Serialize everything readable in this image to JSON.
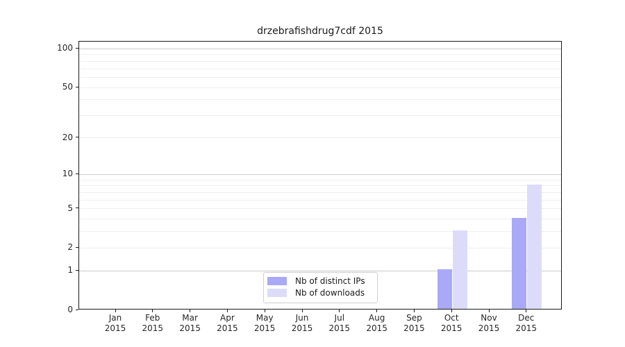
{
  "figure": {
    "background": "#ffffff"
  },
  "chart_data": {
    "type": "bar",
    "title": "drzebrafishdrug7cdf 2015",
    "categories": [
      "Jan",
      "Feb",
      "Mar",
      "Apr",
      "May",
      "Jun",
      "Jul",
      "Aug",
      "Sep",
      "Oct",
      "Nov",
      "Dec"
    ],
    "x_year_label": "2015",
    "series": [
      {
        "name": "Nb of distinct IPs",
        "key": "distinct-ips",
        "color": "#a9a9f8",
        "values": [
          0,
          0,
          0,
          0,
          0,
          0,
          0,
          0,
          0,
          1,
          0,
          4
        ]
      },
      {
        "name": "Nb of downloads",
        "key": "downloads",
        "color": "#dcdcfa",
        "values": [
          0,
          0,
          0,
          0,
          0,
          0,
          0,
          0,
          0,
          3,
          0,
          8
        ]
      }
    ],
    "y_axis": {
      "scale": "log10(1+y)",
      "tick_values": [
        0,
        1,
        2,
        5,
        10,
        20,
        50,
        100
      ],
      "tick_labels": [
        "0",
        "1",
        "2",
        "5",
        "10",
        "20",
        "50",
        "100"
      ],
      "major_grid_values": [
        1,
        10,
        100
      ],
      "minor_grid_values": [
        2,
        3,
        4,
        5,
        6,
        7,
        8,
        9,
        20,
        30,
        40,
        50,
        60,
        70,
        80,
        90
      ],
      "ylim": [
        0,
        113
      ]
    },
    "grid": true,
    "legend_position": "bottom-center",
    "colors": {
      "major_grid": "#c9c9c9",
      "minor_grid": "#efefef",
      "spine": "#1a1a1a"
    }
  }
}
